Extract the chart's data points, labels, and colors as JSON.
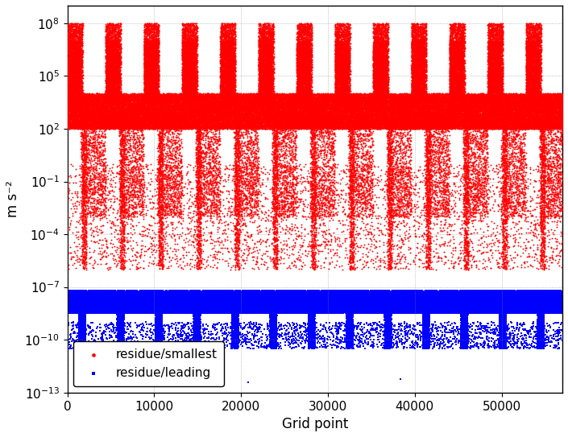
{
  "title": "",
  "xlabel": "Grid point",
  "ylabel": "m s⁻²",
  "xlim": [
    0,
    57000
  ],
  "red_label": "residue/smallest",
  "blue_label": "residue/leading",
  "xticks": [
    0,
    10000,
    20000,
    30000,
    40000,
    50000
  ],
  "red_color": "#ff0000",
  "blue_color": "#0000ff",
  "background": "#ffffff",
  "grid_color": "#888888",
  "seed": 42,
  "n_points": 57000,
  "period": 4400,
  "n_layers": 40
}
